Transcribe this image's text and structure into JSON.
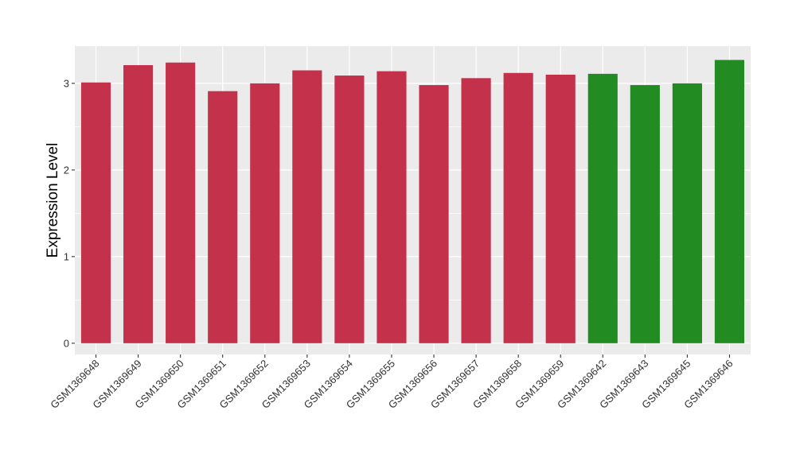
{
  "chart_data": {
    "type": "bar",
    "title": "",
    "xlabel": "",
    "ylabel": "Expression Level",
    "ylim": [
      -0.13,
      3.43
    ],
    "yticks": [
      0,
      1,
      2,
      3
    ],
    "ytick_labels": [
      "0",
      "1",
      "2",
      "3"
    ],
    "grid": true,
    "legend": "none",
    "categories": [
      "GSM1369648",
      "GSM1369649",
      "GSM1369650",
      "GSM1369651",
      "GSM1369652",
      "GSM1369653",
      "GSM1369654",
      "GSM1369655",
      "GSM1369656",
      "GSM1369657",
      "GSM1369658",
      "GSM1369659",
      "GSM1369642",
      "GSM1369643",
      "GSM1369645",
      "GSM1369646"
    ],
    "values": [
      3.01,
      3.21,
      3.24,
      2.91,
      3.0,
      3.15,
      3.09,
      3.14,
      2.98,
      3.06,
      3.12,
      3.1,
      3.11,
      2.98,
      3.0,
      3.27
    ],
    "bar_colors": [
      "#c4314b",
      "#c4314b",
      "#c4314b",
      "#c4314b",
      "#c4314b",
      "#c4314b",
      "#c4314b",
      "#c4314b",
      "#c4314b",
      "#c4314b",
      "#c4314b",
      "#c4314b",
      "#228b22",
      "#228b22",
      "#228b22",
      "#228b22"
    ],
    "panel_background": "#ebebeb",
    "grid_color": "#ffffff"
  }
}
